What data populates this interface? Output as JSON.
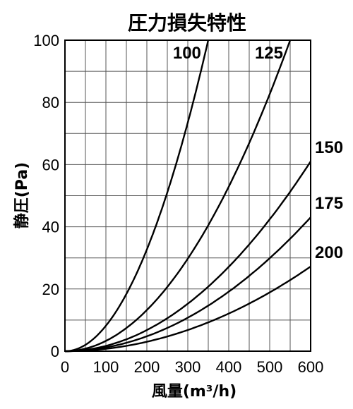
{
  "chart_data": {
    "type": "line",
    "title": "圧力損失特性",
    "xlabel": "風量(m³/h)",
    "ylabel": "静圧(Pa)",
    "xlim": [
      0,
      600
    ],
    "ylim": [
      0,
      100
    ],
    "x_ticks": [
      "0",
      "100",
      "200",
      "300",
      "400",
      "500",
      "600"
    ],
    "y_ticks": [
      "0",
      "20",
      "40",
      "60",
      "80",
      "100"
    ],
    "x_grid_step": 50,
    "y_grid_step": 10,
    "grid": true,
    "x": [
      0,
      50,
      100,
      150,
      200,
      250,
      300,
      350,
      400,
      450,
      500,
      550,
      600
    ],
    "series": [
      {
        "name": "100",
        "values": [
          0,
          2,
          8.2,
          18.4,
          32.7,
          51.1,
          73.6,
          100,
          null,
          null,
          null,
          null,
          null
        ]
      },
      {
        "name": "125",
        "values": [
          0,
          0.8,
          3.3,
          7.4,
          13.2,
          20.7,
          29.8,
          40.5,
          52.9,
          67.0,
          82.6,
          100,
          null
        ]
      },
      {
        "name": "150",
        "values": [
          0,
          0.4,
          1.7,
          3.8,
          6.8,
          10.6,
          15.3,
          20.8,
          27.1,
          34.3,
          42.4,
          51.3,
          61
        ]
      },
      {
        "name": "175",
        "values": [
          0,
          0.3,
          1.2,
          2.7,
          4.8,
          7.5,
          10.8,
          14.7,
          19.1,
          24.2,
          29.9,
          36.2,
          43
        ]
      },
      {
        "name": "200",
        "values": [
          0,
          0.2,
          0.8,
          1.7,
          3.0,
          4.7,
          6.8,
          9.3,
          12.1,
          15.3,
          18.9,
          22.9,
          27.2
        ]
      }
    ]
  }
}
